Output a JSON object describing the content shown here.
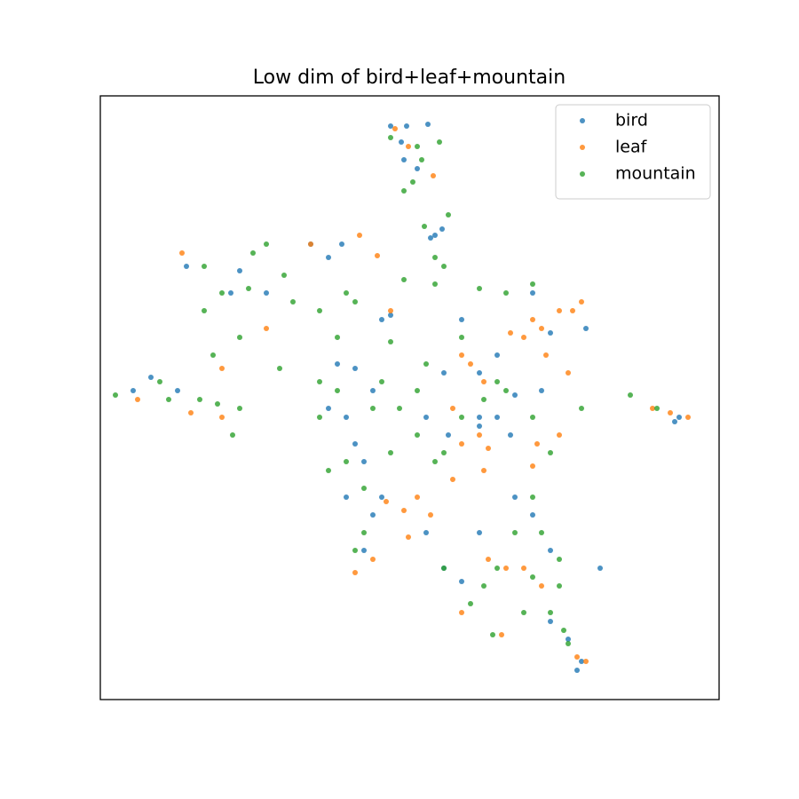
{
  "chart_data": {
    "type": "scatter",
    "title": "Low dim of bird+leaf+mountain",
    "xlim": [
      0,
      697
    ],
    "ylim": [
      0,
      680
    ],
    "legend": "upper right",
    "series": [
      {
        "name": "bird",
        "color": "#1f77b4",
        "x": [
          327,
          345,
          369,
          339,
          357,
          342,
          377,
          385,
          372,
          97,
          157,
          147,
          237,
          257,
          272,
          187,
          327,
          317,
          267,
          287,
          257,
          277,
          307,
          387,
          407,
          427,
          447,
          487,
          507,
          547,
          467,
          497,
          447,
          427,
          392,
          367,
          287,
          297,
          277,
          317,
          307,
          297,
          367,
          387,
          427,
          467,
          487,
          507,
          407,
          507,
          527,
          542,
          537,
          647,
          652,
          37,
          57,
          87,
          563,
          462,
          427
        ],
        "y": [
          646,
          646,
          648,
          628,
          598,
          608,
          523,
          530,
          520,
          488,
          483,
          458,
          513,
          498,
          513,
          458,
          433,
          428,
          378,
          373,
          328,
          318,
          348,
          368,
          428,
          368,
          388,
          458,
          413,
          418,
          343,
          348,
          318,
          318,
          298,
          318,
          288,
          268,
          228,
          228,
          208,
          168,
          188,
          148,
          188,
          228,
          208,
          168,
          133,
          88,
          68,
          43,
          33,
          313,
          318,
          348,
          363,
          348,
          148,
          298,
          308
        ]
      },
      {
        "name": "leaf",
        "color": "#ff7f0e",
        "x": [
          332,
          347,
          375,
          237,
          292,
          312,
          92,
          187,
          137,
          327,
          487,
          477,
          497,
          517,
          532,
          527,
          502,
          407,
          417,
          432,
          397,
          407,
          427,
          437,
          397,
          432,
          357,
          342,
          372,
          487,
          492,
          517,
          437,
          457,
          477,
          497,
          407,
          452,
          537,
          547,
          287,
          307,
          102,
          42,
          137,
          622,
          662,
          642,
          462,
          542,
          347,
          322
        ],
        "y": [
          643,
          623,
          590,
          513,
          523,
          500,
          503,
          418,
          373,
          438,
          428,
          408,
          418,
          438,
          438,
          368,
          388,
          388,
          378,
          358,
          328,
          288,
          298,
          283,
          248,
          258,
          228,
          213,
          208,
          263,
          288,
          298,
          158,
          148,
          148,
          128,
          98,
          73,
          48,
          43,
          143,
          158,
          323,
          338,
          318,
          328,
          318,
          323,
          413,
          448,
          183,
          223
        ]
      },
      {
        "name": "mountain",
        "color": "#2ca02c",
        "x": [
          327,
          357,
          382,
          352,
          342,
          362,
          365,
          392,
          377,
          387,
          117,
          172,
          187,
          207,
          217,
          247,
          277,
          287,
          117,
          127,
          157,
          167,
          137,
          202,
          247,
          267,
          327,
          342,
          377,
          427,
          457,
          487,
          407,
          367,
          357,
          337,
          317,
          307,
          267,
          247,
          257,
          277,
          297,
          327,
          357,
          377,
          387,
          407,
          432,
          447,
          457,
          487,
          507,
          487,
          497,
          517,
          467,
          447,
          432,
          477,
          507,
          522,
          442,
          487,
          517,
          297,
          287,
          17,
          67,
          77,
          112,
          132,
          149,
          157,
          542,
          597,
          627,
          527,
          387,
          417
        ],
        "y": [
          633,
          623,
          628,
          583,
          573,
          608,
          533,
          546,
          498,
          488,
          488,
          503,
          513,
          478,
          448,
          438,
          458,
          448,
          438,
          388,
          408,
          463,
          458,
          373,
          358,
          408,
          403,
          473,
          468,
          463,
          458,
          468,
          408,
          378,
          348,
          328,
          358,
          328,
          348,
          318,
          258,
          268,
          238,
          278,
          298,
          268,
          278,
          318,
          338,
          358,
          348,
          318,
          278,
          228,
          188,
          158,
          188,
          148,
          128,
          98,
          98,
          78,
          73,
          138,
          128,
          188,
          168,
          343,
          358,
          338,
          338,
          333,
          298,
          328,
          328,
          343,
          328,
          63,
          148,
          108
        ]
      }
    ]
  }
}
